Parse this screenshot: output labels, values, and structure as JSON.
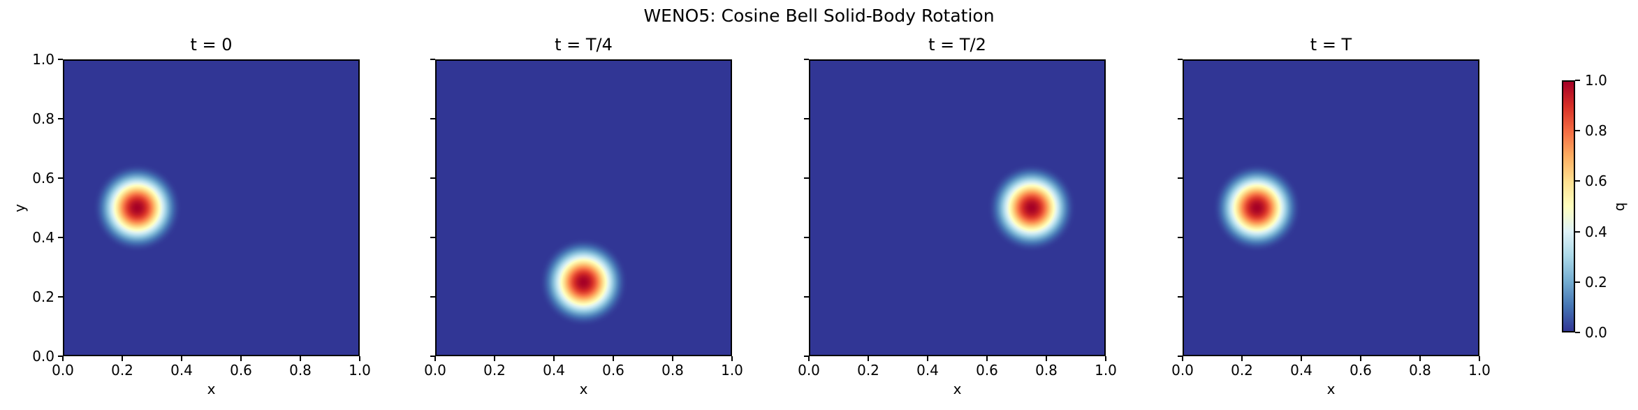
{
  "figure": {
    "suptitle": "WENO5: Cosine Bell Solid-Body Rotation",
    "background_color": "#ffffff"
  },
  "chart_data": {
    "type": "heatmap",
    "title": "WENO5: Cosine Bell Solid-Body Rotation",
    "layout": "1x4 panels sharing y axis, colorbar at right",
    "panels": [
      {
        "title": "t = 0",
        "bell_center_x": 0.25,
        "bell_center_y": 0.5
      },
      {
        "title": "t = T/4",
        "bell_center_x": 0.5,
        "bell_center_y": 0.25
      },
      {
        "title": "t = T/2",
        "bell_center_x": 0.75,
        "bell_center_y": 0.5
      },
      {
        "title": "t = T",
        "bell_center_x": 0.25,
        "bell_center_y": 0.5
      }
    ],
    "field_description": "cosine bell q = 0.5*(1+cos(pi*d/r)) for distance d < r from bell center, q = 0 elsewhere",
    "bell_radius": 0.15,
    "bell_peak_value": 1.0,
    "background_value": 0.0,
    "grid_resolution_approx": 50,
    "xlabel": "x",
    "ylabel": "y",
    "xlim": [
      0.0,
      1.0
    ],
    "ylim": [
      0.0,
      1.0
    ],
    "xticks": [
      0.0,
      0.2,
      0.4,
      0.6,
      0.8,
      1.0
    ],
    "yticks": [
      0.0,
      0.2,
      0.4,
      0.6,
      0.8,
      1.0
    ],
    "xtick_labels": [
      "0.0",
      "0.2",
      "0.4",
      "0.6",
      "0.8",
      "1.0"
    ],
    "ytick_labels": [
      "0.0",
      "0.2",
      "0.4",
      "0.6",
      "0.8",
      "1.0"
    ],
    "grid": false,
    "colorbar": {
      "label": "q",
      "vmin": 0.0,
      "vmax": 1.0,
      "ticks": [
        0.0,
        0.2,
        0.4,
        0.6,
        0.8,
        1.0
      ],
      "tick_labels": [
        "0.0",
        "0.2",
        "0.4",
        "0.6",
        "0.8",
        "1.0"
      ],
      "colormap": "RdYlBu_r"
    },
    "colors": {
      "field_min": "#313695",
      "field_mid": "#ffffbf",
      "field_max": "#a50026",
      "axes": "#000000"
    }
  }
}
